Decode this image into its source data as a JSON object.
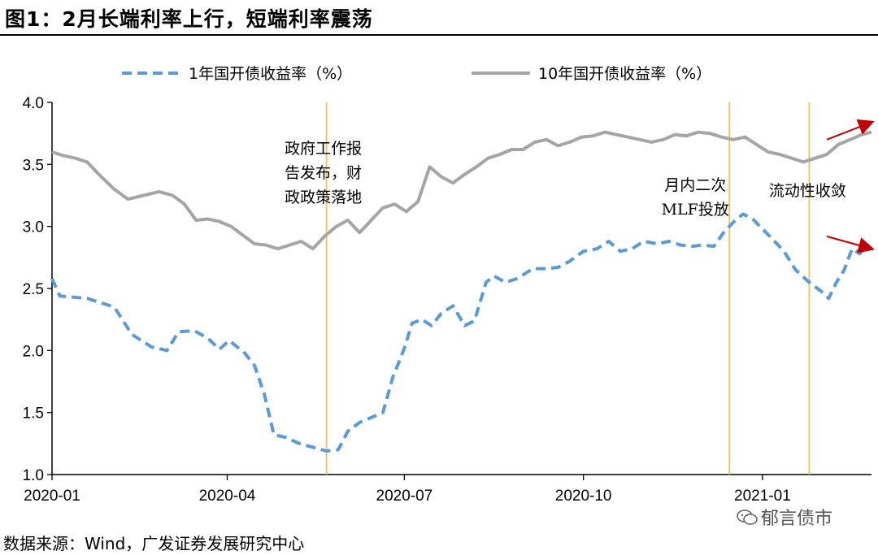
{
  "title": "图1：2月长端利率上行，短端利率震荡",
  "source": "数据来源：Wind，广发证券发展研究中心",
  "watermark": "郁言债市",
  "chart_data": {
    "type": "line",
    "ylim": [
      1.0,
      4.0
    ],
    "yticks": [
      "1.0",
      "1.5",
      "2.0",
      "2.5",
      "3.0",
      "3.5",
      "4.0"
    ],
    "xlim": [
      "2020-01-02",
      "2021-02-26"
    ],
    "xticks": [
      {
        "date": "2020-01-02",
        "label": "2020-01"
      },
      {
        "date": "2020-04-01",
        "label": "2020-04"
      },
      {
        "date": "2020-07-01",
        "label": "2020-07"
      },
      {
        "date": "2020-10-01",
        "label": "2020-10"
      },
      {
        "date": "2021-01-01",
        "label": "2021-01"
      }
    ],
    "legend_position": "top",
    "series": [
      {
        "name": "1年国开债收益率（%）",
        "style": "dashed",
        "color": "#5B9BD5",
        "points": [
          [
            "2020-01-02",
            2.58
          ],
          [
            "2020-01-06",
            2.44
          ],
          [
            "2020-01-20",
            2.42
          ],
          [
            "2020-02-03",
            2.35
          ],
          [
            "2020-02-12",
            2.13
          ],
          [
            "2020-02-22",
            2.03
          ],
          [
            "2020-03-01",
            2.0
          ],
          [
            "2020-03-07",
            2.15
          ],
          [
            "2020-03-15",
            2.16
          ],
          [
            "2020-03-22",
            2.1
          ],
          [
            "2020-03-28",
            2.01
          ],
          [
            "2020-04-02",
            2.08
          ],
          [
            "2020-04-10",
            1.98
          ],
          [
            "2020-04-15",
            1.88
          ],
          [
            "2020-04-20",
            1.65
          ],
          [
            "2020-04-25",
            1.32
          ],
          [
            "2020-05-01",
            1.3
          ],
          [
            "2020-05-08",
            1.25
          ],
          [
            "2020-05-15",
            1.22
          ],
          [
            "2020-05-22",
            1.19
          ],
          [
            "2020-05-28",
            1.2
          ],
          [
            "2020-06-02",
            1.35
          ],
          [
            "2020-06-08",
            1.42
          ],
          [
            "2020-06-14",
            1.46
          ],
          [
            "2020-06-20",
            1.5
          ],
          [
            "2020-06-25",
            1.78
          ],
          [
            "2020-07-01",
            2.02
          ],
          [
            "2020-07-05",
            2.22
          ],
          [
            "2020-07-10",
            2.25
          ],
          [
            "2020-07-15",
            2.2
          ],
          [
            "2020-07-20",
            2.3
          ],
          [
            "2020-07-26",
            2.36
          ],
          [
            "2020-08-01",
            2.2
          ],
          [
            "2020-08-06",
            2.24
          ],
          [
            "2020-08-12",
            2.55
          ],
          [
            "2020-08-16",
            2.6
          ],
          [
            "2020-08-22",
            2.55
          ],
          [
            "2020-08-28",
            2.58
          ],
          [
            "2020-09-05",
            2.66
          ],
          [
            "2020-09-12",
            2.66
          ],
          [
            "2020-09-18",
            2.67
          ],
          [
            "2020-09-24",
            2.72
          ],
          [
            "2020-10-01",
            2.8
          ],
          [
            "2020-10-08",
            2.82
          ],
          [
            "2020-10-14",
            2.88
          ],
          [
            "2020-10-20",
            2.8
          ],
          [
            "2020-10-26",
            2.82
          ],
          [
            "2020-11-01",
            2.88
          ],
          [
            "2020-11-08",
            2.86
          ],
          [
            "2020-11-14",
            2.88
          ],
          [
            "2020-11-20",
            2.85
          ],
          [
            "2020-11-26",
            2.84
          ],
          [
            "2020-12-01",
            2.85
          ],
          [
            "2020-12-07",
            2.84
          ],
          [
            "2020-12-12",
            2.95
          ],
          [
            "2020-12-18",
            3.05
          ],
          [
            "2020-12-22",
            3.1
          ],
          [
            "2020-12-27",
            3.06
          ],
          [
            "2021-01-01",
            2.98
          ],
          [
            "2021-01-06",
            2.9
          ],
          [
            "2021-01-12",
            2.8
          ],
          [
            "2021-01-18",
            2.65
          ],
          [
            "2021-01-25",
            2.55
          ],
          [
            "2021-01-31",
            2.48
          ],
          [
            "2021-02-04",
            2.42
          ],
          [
            "2021-02-08",
            2.55
          ],
          [
            "2021-02-12",
            2.65
          ],
          [
            "2021-02-16",
            2.82
          ],
          [
            "2021-02-20",
            2.78
          ],
          [
            "2021-02-24",
            2.85
          ],
          [
            "2021-02-26",
            2.82
          ]
        ]
      },
      {
        "name": "10年国开债收益率（%）",
        "style": "solid",
        "color": "#A5A5A5",
        "points": [
          [
            "2020-01-02",
            3.6
          ],
          [
            "2020-01-08",
            3.57
          ],
          [
            "2020-01-14",
            3.55
          ],
          [
            "2020-01-20",
            3.52
          ],
          [
            "2020-01-26",
            3.42
          ],
          [
            "2020-02-03",
            3.3
          ],
          [
            "2020-02-10",
            3.22
          ],
          [
            "2020-02-18",
            3.25
          ],
          [
            "2020-02-26",
            3.28
          ],
          [
            "2020-03-04",
            3.25
          ],
          [
            "2020-03-10",
            3.18
          ],
          [
            "2020-03-16",
            3.05
          ],
          [
            "2020-03-22",
            3.06
          ],
          [
            "2020-03-28",
            3.04
          ],
          [
            "2020-04-03",
            3.0
          ],
          [
            "2020-04-09",
            2.93
          ],
          [
            "2020-04-15",
            2.86
          ],
          [
            "2020-04-21",
            2.85
          ],
          [
            "2020-04-27",
            2.82
          ],
          [
            "2020-05-03",
            2.85
          ],
          [
            "2020-05-09",
            2.88
          ],
          [
            "2020-05-15",
            2.82
          ],
          [
            "2020-05-21",
            2.92
          ],
          [
            "2020-05-27",
            3.0
          ],
          [
            "2020-06-02",
            3.05
          ],
          [
            "2020-06-08",
            2.95
          ],
          [
            "2020-06-14",
            3.05
          ],
          [
            "2020-06-20",
            3.15
          ],
          [
            "2020-06-26",
            3.18
          ],
          [
            "2020-07-02",
            3.12
          ],
          [
            "2020-07-08",
            3.2
          ],
          [
            "2020-07-14",
            3.48
          ],
          [
            "2020-07-20",
            3.4
          ],
          [
            "2020-07-26",
            3.35
          ],
          [
            "2020-08-01",
            3.42
          ],
          [
            "2020-08-07",
            3.48
          ],
          [
            "2020-08-13",
            3.55
          ],
          [
            "2020-08-19",
            3.58
          ],
          [
            "2020-08-25",
            3.62
          ],
          [
            "2020-08-31",
            3.62
          ],
          [
            "2020-09-06",
            3.68
          ],
          [
            "2020-09-12",
            3.7
          ],
          [
            "2020-09-18",
            3.65
          ],
          [
            "2020-09-24",
            3.68
          ],
          [
            "2020-09-30",
            3.72
          ],
          [
            "2020-10-06",
            3.73
          ],
          [
            "2020-10-12",
            3.76
          ],
          [
            "2020-10-18",
            3.74
          ],
          [
            "2020-10-24",
            3.72
          ],
          [
            "2020-10-30",
            3.7
          ],
          [
            "2020-11-05",
            3.68
          ],
          [
            "2020-11-11",
            3.7
          ],
          [
            "2020-11-17",
            3.74
          ],
          [
            "2020-11-23",
            3.73
          ],
          [
            "2020-11-29",
            3.76
          ],
          [
            "2020-12-05",
            3.75
          ],
          [
            "2020-12-11",
            3.72
          ],
          [
            "2020-12-17",
            3.7
          ],
          [
            "2020-12-23",
            3.72
          ],
          [
            "2020-12-29",
            3.66
          ],
          [
            "2021-01-04",
            3.6
          ],
          [
            "2021-01-10",
            3.58
          ],
          [
            "2021-01-16",
            3.55
          ],
          [
            "2021-01-22",
            3.52
          ],
          [
            "2021-01-28",
            3.55
          ],
          [
            "2021-02-03",
            3.58
          ],
          [
            "2021-02-09",
            3.66
          ],
          [
            "2021-02-15",
            3.7
          ],
          [
            "2021-02-21",
            3.74
          ],
          [
            "2021-02-26",
            3.76
          ]
        ]
      }
    ],
    "event_lines": [
      {
        "date": "2020-05-22",
        "label_lines": [
          "政府工作报",
          "告发布，财",
          "政政策落地"
        ],
        "color": "#F2C14E"
      },
      {
        "date": "2020-12-15",
        "label_lines": [
          "月内二次",
          "MLF投放"
        ],
        "color": "#F2C14E"
      },
      {
        "date": "2021-01-25",
        "label_lines": [
          "流动性收敛"
        ],
        "color": "#F2C14E"
      }
    ],
    "trend_arrows": [
      {
        "from": [
          "2021-02-03",
          3.7
        ],
        "to": [
          "2021-02-26",
          3.84
        ],
        "color": "#C00000"
      },
      {
        "from": [
          "2021-02-03",
          2.92
        ],
        "to": [
          "2021-02-26",
          2.82
        ],
        "color": "#C00000"
      }
    ]
  }
}
